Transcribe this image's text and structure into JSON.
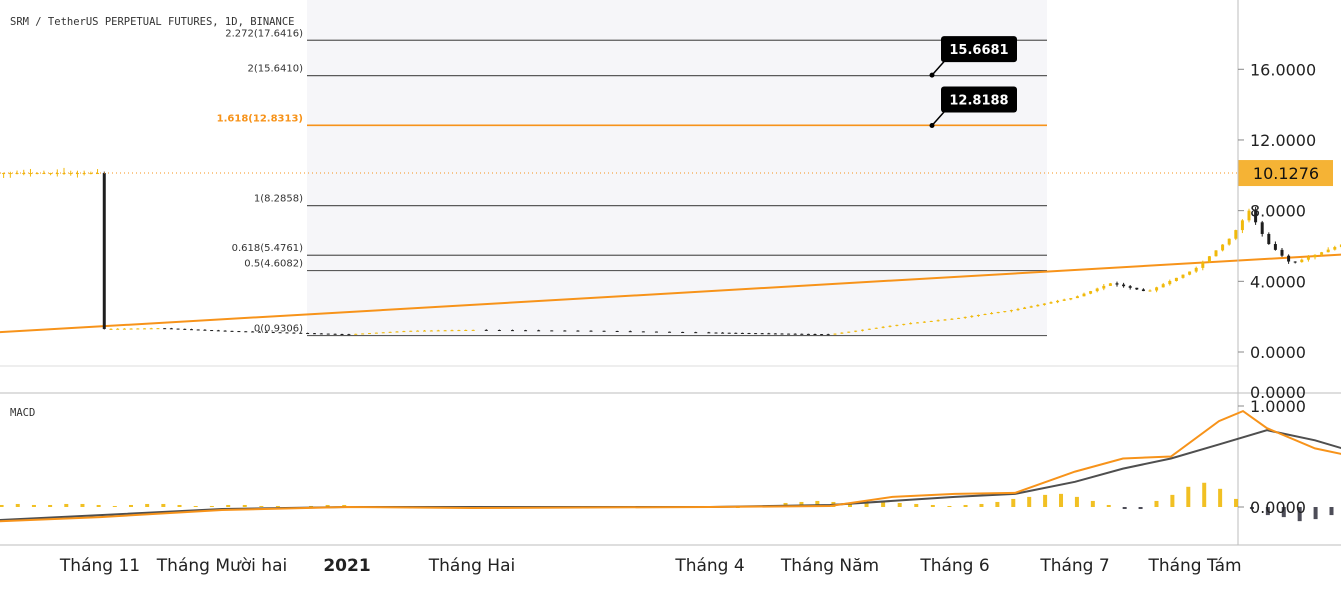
{
  "header": {
    "symbol_title": "SRM / TetherUS PERPETUAL FUTURES, 1D, BINANCE",
    "macd_label": "MACD"
  },
  "colors": {
    "accent": "#f7931a",
    "candle_up": "#f0b90b",
    "candle_down": "#1e1e1e",
    "fib_line": "#5a5a5a",
    "fib_highlight": "#f7931a",
    "signal_line": "#4f4f4f",
    "hist_pos": "#f0b90b",
    "hist_neg": "#3a3a46",
    "price_tag_bg": "#f5b335",
    "callout_bg": "#000000"
  },
  "chart_data": [
    {
      "type": "candlestick",
      "title": "SRM / TetherUS PERPETUAL FUTURES, 1D, BINANCE",
      "x_ticks": [
        "Tháng 11",
        "Tháng Mười hai",
        "2021",
        "Tháng Hai",
        "Tháng 4",
        "Tháng Năm",
        "Tháng 6",
        "Tháng 7",
        "Tháng Tám"
      ],
      "y_ticks": [
        "16.0000",
        "12.0000",
        "8.0000",
        "4.0000",
        "0.0000"
      ],
      "ylim": [
        0,
        18.5
      ],
      "last_price": "10.1276",
      "extra_axis_label": "0.0000",
      "fib_levels": [
        {
          "label": "2.272(17.6416)",
          "value": 17.6416
        },
        {
          "label": "2(15.6410)",
          "value": 15.641
        },
        {
          "label": "1.618(12.8313)",
          "value": 12.8313,
          "highlight": true
        },
        {
          "label": "1(8.2858)",
          "value": 8.2858
        },
        {
          "label": "0.618(5.4761)",
          "value": 5.4761
        },
        {
          "label": "0.5(4.6082)",
          "value": 4.6082
        },
        {
          "label": "0(0.9306)",
          "value": 0.9306
        }
      ],
      "callouts": [
        {
          "text": "15.6681",
          "value": 15.6681
        },
        {
          "text": "12.8188",
          "value": 12.8188
        }
      ],
      "trendline": {
        "start": [
          -2.0,
          0.65
        ],
        "end": [
          14.35,
          7.53
        ]
      },
      "close_path": [
        [
          0,
          1.3
        ],
        [
          0.5,
          1.35
        ],
        [
          1.0,
          1.2
        ],
        [
          1.5,
          1.1
        ],
        [
          2.0,
          1.0
        ],
        [
          2.5,
          1.2
        ],
        [
          3.0,
          1.25
        ],
        [
          3.5,
          1.2
        ],
        [
          4.0,
          1.1
        ],
        [
          4.5,
          1.05
        ],
        [
          5.0,
          1.0
        ],
        [
          5.3,
          1.3
        ],
        [
          5.6,
          1.6
        ],
        [
          6.0,
          1.9
        ],
        [
          6.5,
          2.4
        ],
        [
          7.0,
          3.1
        ],
        [
          7.3,
          3.9
        ],
        [
          7.6,
          3.4
        ],
        [
          8.0,
          4.7
        ],
        [
          8.3,
          6.5
        ],
        [
          8.45,
          8.0
        ],
        [
          8.6,
          6.2
        ],
        [
          8.8,
          5.0
        ],
        [
          9.0,
          5.5
        ],
        [
          9.3,
          6.3
        ],
        [
          9.6,
          5.6
        ],
        [
          10.0,
          5.0
        ],
        [
          10.3,
          4.8
        ],
        [
          10.5,
          3.9
        ],
        [
          10.8,
          4.8
        ],
        [
          11.0,
          5.3
        ],
        [
          11.3,
          6.1
        ],
        [
          11.5,
          6.5
        ],
        [
          11.7,
          8.2
        ],
        [
          11.9,
          7.5
        ],
        [
          12.1,
          6.5
        ],
        [
          12.3,
          4.8
        ],
        [
          12.5,
          6.0
        ],
        [
          12.7,
          7.8
        ],
        [
          12.8,
          10.1276
        ]
      ]
    },
    {
      "type": "macd",
      "label": "MACD",
      "y_ticks": [
        "1.0000",
        "0.0000"
      ],
      "ylim": [
        -0.38,
        1.02
      ],
      "macd_line": [
        [
          -2.0,
          -0.25
        ],
        [
          -1.0,
          -0.15
        ],
        [
          0.0,
          -0.1
        ],
        [
          1.0,
          -0.03
        ],
        [
          2.0,
          0.0
        ],
        [
          3.0,
          -0.01
        ],
        [
          4.0,
          0.0
        ],
        [
          5.0,
          0.01
        ],
        [
          5.5,
          0.1
        ],
        [
          6.0,
          0.13
        ],
        [
          6.5,
          0.14
        ],
        [
          7.0,
          0.35
        ],
        [
          7.4,
          0.48
        ],
        [
          7.8,
          0.5
        ],
        [
          8.2,
          0.85
        ],
        [
          8.4,
          0.95
        ],
        [
          8.6,
          0.78
        ],
        [
          9.0,
          0.58
        ],
        [
          9.4,
          0.48
        ],
        [
          9.8,
          0.3
        ],
        [
          10.2,
          0.1
        ],
        [
          10.5,
          -0.18
        ],
        [
          10.8,
          0.0
        ],
        [
          11.2,
          0.08
        ],
        [
          11.5,
          0.32
        ],
        [
          11.8,
          0.57
        ],
        [
          12.1,
          0.48
        ],
        [
          12.4,
          0.2
        ],
        [
          12.6,
          0.05
        ],
        [
          12.8,
          0.4
        ]
      ],
      "signal_line": [
        [
          -2.0,
          -0.2
        ],
        [
          -1.0,
          -0.14
        ],
        [
          0.0,
          -0.08
        ],
        [
          1.0,
          -0.02
        ],
        [
          2.0,
          0.0
        ],
        [
          3.0,
          0.0
        ],
        [
          4.0,
          0.0
        ],
        [
          5.0,
          0.02
        ],
        [
          5.5,
          0.06
        ],
        [
          6.0,
          0.1
        ],
        [
          6.5,
          0.13
        ],
        [
          7.0,
          0.25
        ],
        [
          7.4,
          0.38
        ],
        [
          7.8,
          0.48
        ],
        [
          8.2,
          0.62
        ],
        [
          8.6,
          0.76
        ],
        [
          9.0,
          0.66
        ],
        [
          9.4,
          0.52
        ],
        [
          9.8,
          0.38
        ],
        [
          10.2,
          0.22
        ],
        [
          10.5,
          0.06
        ],
        [
          10.8,
          0.02
        ],
        [
          11.2,
          0.1
        ],
        [
          11.5,
          0.25
        ],
        [
          11.8,
          0.45
        ],
        [
          12.1,
          0.47
        ],
        [
          12.4,
          0.3
        ],
        [
          12.6,
          0.18
        ],
        [
          12.8,
          0.24
        ]
      ],
      "histogram": [
        0.01,
        0.02,
        0.01,
        -0.01,
        0.02,
        0.01,
        0.0,
        0.01,
        0.02,
        0.02,
        0.03,
        0.02,
        0.02,
        0.03,
        0.03,
        0.02,
        0.01,
        0.02,
        0.03,
        0.03,
        0.02,
        0.01,
        0.01,
        0.02,
        0.02,
        0.01,
        0.01,
        0.0,
        0.01,
        0.02,
        0.02,
        0.01,
        0.01,
        0.01,
        0.0,
        0.01,
        0.01,
        0.0,
        0.01,
        0.01,
        0.0,
        0.0,
        0.01,
        0.0,
        0.0,
        0.01,
        0.01,
        0.0,
        0.01,
        0.02,
        0.04,
        0.05,
        0.06,
        0.05,
        0.04,
        0.05,
        0.06,
        0.04,
        0.03,
        0.02,
        0.01,
        0.02,
        0.03,
        0.05,
        0.08,
        0.1,
        0.12,
        0.13,
        0.1,
        0.06,
        0.02,
        -0.02,
        -0.02,
        0.06,
        0.12,
        0.2,
        0.24,
        0.18,
        0.08,
        -0.02,
        -0.08,
        -0.1,
        -0.14,
        -0.12,
        -0.08,
        -0.06,
        -0.08,
        -0.1,
        -0.12,
        -0.14,
        -0.16,
        -0.18,
        -0.2,
        -0.18,
        -0.14,
        -0.08,
        -0.04,
        0.02,
        0.06,
        0.1,
        0.14,
        0.18,
        0.2,
        0.22,
        0.2,
        0.16,
        0.12,
        -0.04,
        -0.12,
        -0.16,
        -0.18,
        -0.14,
        0.16
      ]
    }
  ]
}
